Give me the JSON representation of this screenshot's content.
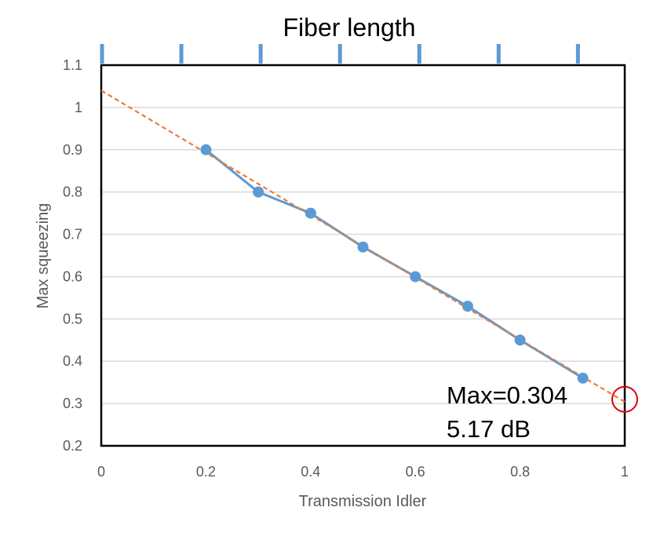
{
  "chart_data": {
    "type": "line",
    "title": "",
    "top_axis_label": "Fiber length",
    "top_axis_tick_count": 7,
    "xlabel": "Transmission Idler",
    "ylabel": "Max squeezing",
    "xlim": [
      0,
      1
    ],
    "ylim": [
      0.2,
      1.1
    ],
    "x_ticks": [
      0,
      0.2,
      0.4,
      0.6,
      0.8,
      1
    ],
    "x_tick_labels": [
      "0",
      "0.2",
      "0.4",
      "0.6",
      "0.8",
      "1"
    ],
    "y_ticks": [
      0.2,
      0.3,
      0.4,
      0.5,
      0.6,
      0.7,
      0.8,
      0.9,
      1,
      1.1
    ],
    "y_tick_labels": [
      "0.2",
      "0.3",
      "0.4",
      "0.5",
      "0.6",
      "0.7",
      "0.8",
      "0.9",
      "1",
      "1.1"
    ],
    "grid": "horizontal",
    "series": [
      {
        "style": "solid line with markers",
        "color": "#5b9bd5",
        "x": [
          0.2,
          0.3,
          0.4,
          0.5,
          0.6,
          0.7,
          0.8,
          0.92
        ],
        "y": [
          0.9,
          0.8,
          0.75,
          0.67,
          0.6,
          0.53,
          0.45,
          0.36
        ]
      },
      {
        "style": "dashed trendline",
        "color": "#ed7d31",
        "x": [
          0,
          1
        ],
        "y": [
          1.04,
          0.304
        ]
      }
    ],
    "highlight_point": {
      "x": 1,
      "y": 0.31,
      "color": "#e00000"
    },
    "annotations": [
      "Max=0.304",
      "5.17 dB"
    ]
  }
}
